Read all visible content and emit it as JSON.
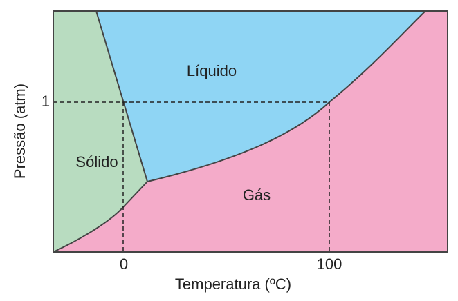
{
  "x_axis": {
    "label": "Temperatura (ºC)",
    "ticks": [
      "0",
      "100"
    ]
  },
  "y_axis": {
    "label": "Pressão (atm)",
    "ticks": [
      "1"
    ]
  },
  "regions": {
    "solid": "Sólido",
    "liquid": "Líquido",
    "gas": "Gás"
  }
}
